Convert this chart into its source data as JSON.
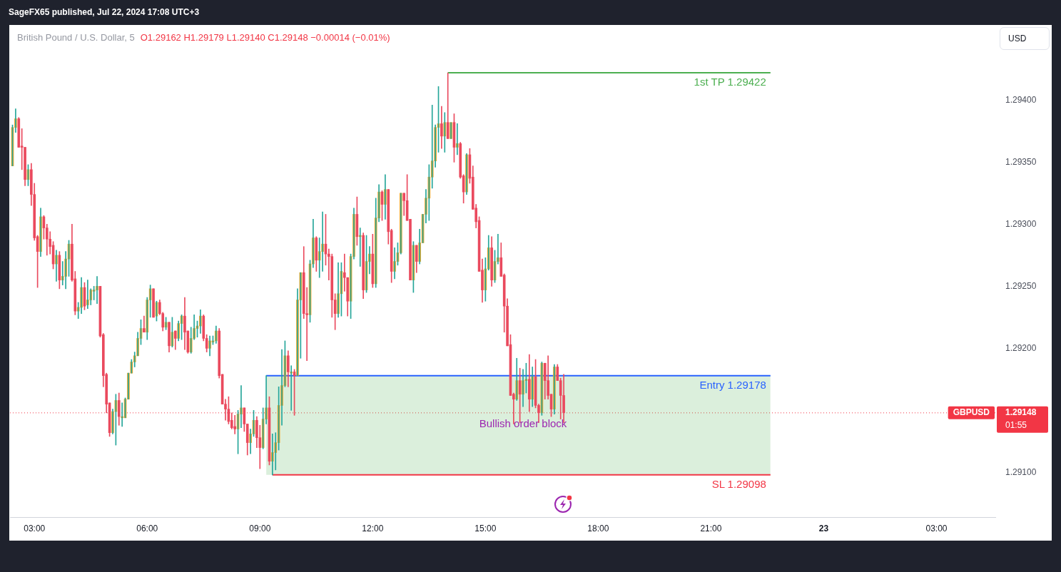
{
  "chart_data": {
    "type": "candlestick",
    "title": "British Pound / U.S. Dollar, 5",
    "subtitle": "O1.29162 H1.29179 L1.29140 C1.29148 −0.00014 (−0.01%)",
    "x": [
      "2024-07-22T02:25",
      "2024-07-22T02:30",
      "2024-07-22T02:35",
      "2024-07-22T02:40",
      "2024-07-22T02:45",
      "2024-07-22T02:50",
      "2024-07-22T02:55",
      "2024-07-22T03:00",
      "2024-07-22T03:05",
      "2024-07-22T03:10",
      "2024-07-22T03:15",
      "2024-07-22T03:20",
      "2024-07-22T03:25",
      "2024-07-22T03:30",
      "2024-07-22T03:35",
      "2024-07-22T03:40",
      "2024-07-22T03:45",
      "2024-07-22T03:50",
      "2024-07-22T03:55",
      "2024-07-22T04:00",
      "2024-07-22T04:05",
      "2024-07-22T04:10",
      "2024-07-22T04:15",
      "2024-07-22T04:20",
      "2024-07-22T04:25",
      "2024-07-22T04:30",
      "2024-07-22T04:35",
      "2024-07-22T04:40",
      "2024-07-22T04:45",
      "2024-07-22T04:50",
      "2024-07-22T04:55",
      "2024-07-22T05:00",
      "2024-07-22T05:05",
      "2024-07-22T05:10",
      "2024-07-22T05:15",
      "2024-07-22T05:20",
      "2024-07-22T05:25",
      "2024-07-22T05:30",
      "2024-07-22T05:35",
      "2024-07-22T05:40",
      "2024-07-22T05:45",
      "2024-07-22T05:50",
      "2024-07-22T05:55",
      "2024-07-22T06:00",
      "2024-07-22T06:05",
      "2024-07-22T06:10",
      "2024-07-22T06:15",
      "2024-07-22T06:20",
      "2024-07-22T06:25",
      "2024-07-22T06:30",
      "2024-07-22T06:35",
      "2024-07-22T06:40",
      "2024-07-22T06:45",
      "2024-07-22T06:50",
      "2024-07-22T06:55",
      "2024-07-22T07:00",
      "2024-07-22T07:05",
      "2024-07-22T07:10",
      "2024-07-22T07:15",
      "2024-07-22T07:20",
      "2024-07-22T07:25",
      "2024-07-22T07:30",
      "2024-07-22T07:35",
      "2024-07-22T07:40",
      "2024-07-22T07:45",
      "2024-07-22T07:50",
      "2024-07-22T07:55",
      "2024-07-22T08:00",
      "2024-07-22T08:05",
      "2024-07-22T08:10",
      "2024-07-22T08:15",
      "2024-07-22T08:20",
      "2024-07-22T08:25",
      "2024-07-22T08:30",
      "2024-07-22T08:35",
      "2024-07-22T08:40",
      "2024-07-22T08:45",
      "2024-07-22T08:50",
      "2024-07-22T08:55",
      "2024-07-22T09:00",
      "2024-07-22T09:05",
      "2024-07-22T09:10",
      "2024-07-22T09:15",
      "2024-07-22T09:20",
      "2024-07-22T09:25",
      "2024-07-22T09:30",
      "2024-07-22T09:35",
      "2024-07-22T09:40",
      "2024-07-22T09:45",
      "2024-07-22T09:50",
      "2024-07-22T09:55",
      "2024-07-22T10:00",
      "2024-07-22T10:05",
      "2024-07-22T10:10",
      "2024-07-22T10:15",
      "2024-07-22T10:20",
      "2024-07-22T10:25",
      "2024-07-22T10:30",
      "2024-07-22T10:35",
      "2024-07-22T10:40",
      "2024-07-22T10:45",
      "2024-07-22T10:50",
      "2024-07-22T10:55",
      "2024-07-22T11:00",
      "2024-07-22T11:05",
      "2024-07-22T11:10",
      "2024-07-22T11:15",
      "2024-07-22T11:20",
      "2024-07-22T11:25",
      "2024-07-22T11:30",
      "2024-07-22T11:35",
      "2024-07-22T11:40",
      "2024-07-22T11:45",
      "2024-07-22T11:50",
      "2024-07-22T11:55",
      "2024-07-22T12:00",
      "2024-07-22T12:05",
      "2024-07-22T12:10",
      "2024-07-22T12:15",
      "2024-07-22T12:20",
      "2024-07-22T12:25",
      "2024-07-22T12:30",
      "2024-07-22T12:35",
      "2024-07-22T12:40",
      "2024-07-22T12:45",
      "2024-07-22T12:50",
      "2024-07-22T12:55",
      "2024-07-22T13:00",
      "2024-07-22T13:05",
      "2024-07-22T13:10",
      "2024-07-22T13:15",
      "2024-07-22T13:20",
      "2024-07-22T13:25",
      "2024-07-22T13:30",
      "2024-07-22T13:35",
      "2024-07-22T13:40",
      "2024-07-22T13:45",
      "2024-07-22T13:50",
      "2024-07-22T13:55",
      "2024-07-22T14:00",
      "2024-07-22T14:05",
      "2024-07-22T14:10",
      "2024-07-22T14:15",
      "2024-07-22T14:20",
      "2024-07-22T14:25",
      "2024-07-22T14:30",
      "2024-07-22T14:35",
      "2024-07-22T14:40",
      "2024-07-22T14:45",
      "2024-07-22T14:50",
      "2024-07-22T14:55",
      "2024-07-22T15:00",
      "2024-07-22T15:05",
      "2024-07-22T15:10",
      "2024-07-22T15:15",
      "2024-07-22T15:20",
      "2024-07-22T15:25",
      "2024-07-22T15:30",
      "2024-07-22T15:35",
      "2024-07-22T15:40",
      "2024-07-22T15:45",
      "2024-07-22T15:50",
      "2024-07-22T15:55",
      "2024-07-22T16:00",
      "2024-07-22T16:05",
      "2024-07-22T16:10",
      "2024-07-22T16:15",
      "2024-07-22T16:20",
      "2024-07-22T16:25",
      "2024-07-22T16:30",
      "2024-07-22T16:35",
      "2024-07-22T16:40",
      "2024-07-22T16:45",
      "2024-07-22T16:50",
      "2024-07-22T16:55",
      "2024-07-22T17:00",
      "2024-07-22T17:05"
    ],
    "ohlc": [
      [
        1.29347,
        1.2938,
        1.29347,
        1.29378
      ],
      [
        1.29378,
        1.29393,
        1.29374,
        1.29385
      ],
      [
        1.29385,
        1.29386,
        1.29362,
        1.29362
      ],
      [
        1.29363,
        1.29377,
        1.29344,
        1.29362
      ],
      [
        1.29362,
        1.29362,
        1.29331,
        1.29336
      ],
      [
        1.29336,
        1.29348,
        1.29331,
        1.29344
      ],
      [
        1.29344,
        1.29349,
        1.29315,
        1.29324
      ],
      [
        1.29324,
        1.29333,
        1.29287,
        1.29289
      ],
      [
        1.2929,
        1.29291,
        1.29249,
        1.29278
      ],
      [
        1.29278,
        1.29313,
        1.29274,
        1.29306
      ],
      [
        1.29306,
        1.29307,
        1.29288,
        1.29297
      ],
      [
        1.29297,
        1.293,
        1.29275,
        1.29288
      ],
      [
        1.29288,
        1.29294,
        1.29276,
        1.29282
      ],
      [
        1.29283,
        1.29286,
        1.29264,
        1.29268
      ],
      [
        1.29268,
        1.29279,
        1.29254,
        1.29275
      ],
      [
        1.29275,
        1.29278,
        1.29248,
        1.29255
      ],
      [
        1.29255,
        1.2927,
        1.29251,
        1.29258
      ],
      [
        1.29258,
        1.29278,
        1.29248,
        1.29272
      ],
      [
        1.29272,
        1.29287,
        1.29258,
        1.29284
      ],
      [
        1.29284,
        1.293,
        1.29254,
        1.29255
      ],
      [
        1.29256,
        1.29262,
        1.29227,
        1.2923
      ],
      [
        1.2923,
        1.29237,
        1.29224,
        1.29233
      ],
      [
        1.29233,
        1.29257,
        1.29228,
        1.29249
      ],
      [
        1.29249,
        1.29253,
        1.29231,
        1.29234
      ],
      [
        1.29235,
        1.29255,
        1.29232,
        1.29239
      ],
      [
        1.29239,
        1.29248,
        1.29235,
        1.29247
      ],
      [
        1.29246,
        1.2925,
        1.29239,
        1.29247
      ],
      [
        1.29247,
        1.29258,
        1.29236,
        1.2925
      ],
      [
        1.2925,
        1.2925,
        1.29209,
        1.2921
      ],
      [
        1.29211,
        1.29212,
        1.29169,
        1.29178
      ],
      [
        1.29179,
        1.2918,
        1.29148,
        1.29155
      ],
      [
        1.29156,
        1.29156,
        1.29129,
        1.29132
      ],
      [
        1.29132,
        1.29151,
        1.29131,
        1.29149
      ],
      [
        1.29149,
        1.29163,
        1.29122,
        1.29158
      ],
      [
        1.29158,
        1.29164,
        1.29138,
        1.29145
      ],
      [
        1.29144,
        1.29156,
        1.29137,
        1.29145
      ],
      [
        1.29144,
        1.2916,
        1.29144,
        1.29159
      ],
      [
        1.29159,
        1.2918,
        1.29159,
        1.2918
      ],
      [
        1.2918,
        1.29191,
        1.2918,
        1.29189
      ],
      [
        1.29189,
        1.29197,
        1.29185,
        1.29194
      ],
      [
        1.29194,
        1.29213,
        1.29194,
        1.29208
      ],
      [
        1.29208,
        1.29223,
        1.29203,
        1.29216
      ],
      [
        1.29216,
        1.29226,
        1.29213,
        1.29213
      ],
      [
        1.29213,
        1.29241,
        1.29207,
        1.29239
      ],
      [
        1.29239,
        1.29251,
        1.29225,
        1.29248
      ],
      [
        1.29248,
        1.29248,
        1.29225,
        1.29225
      ],
      [
        1.29226,
        1.29238,
        1.29222,
        1.29237
      ],
      [
        1.29237,
        1.29239,
        1.29227,
        1.29228
      ],
      [
        1.29228,
        1.29229,
        1.29214,
        1.29217
      ],
      [
        1.29217,
        1.29225,
        1.29215,
        1.29221
      ],
      [
        1.29221,
        1.29221,
        1.29197,
        1.29202
      ],
      [
        1.29202,
        1.29225,
        1.29201,
        1.29213
      ],
      [
        1.29214,
        1.29214,
        1.29199,
        1.29208
      ],
      [
        1.29208,
        1.29222,
        1.29206,
        1.2922
      ],
      [
        1.2922,
        1.29227,
        1.29207,
        1.29226
      ],
      [
        1.29226,
        1.29241,
        1.29199,
        1.29213
      ],
      [
        1.29214,
        1.29214,
        1.29196,
        1.29197
      ],
      [
        1.29197,
        1.29217,
        1.29196,
        1.29208
      ],
      [
        1.29208,
        1.29227,
        1.29207,
        1.29216
      ],
      [
        1.29216,
        1.29222,
        1.29209,
        1.29218
      ],
      [
        1.29218,
        1.29231,
        1.29212,
        1.29226
      ],
      [
        1.29226,
        1.29227,
        1.29206,
        1.29208
      ],
      [
        1.29208,
        1.29211,
        1.29197,
        1.292
      ],
      [
        1.292,
        1.2921,
        1.29194,
        1.29206
      ],
      [
        1.29205,
        1.2921,
        1.29203,
        1.29206
      ],
      [
        1.29206,
        1.29218,
        1.29204,
        1.29214
      ],
      [
        1.29214,
        1.29216,
        1.29176,
        1.29178
      ],
      [
        1.29179,
        1.29179,
        1.29155,
        1.29155
      ],
      [
        1.29155,
        1.29159,
        1.29142,
        1.29151
      ],
      [
        1.29151,
        1.29161,
        1.29139,
        1.29141
      ],
      [
        1.29142,
        1.29148,
        1.29135,
        1.29136
      ],
      [
        1.29137,
        1.29146,
        1.29131,
        1.29135
      ],
      [
        1.29135,
        1.2915,
        1.29115,
        1.29147
      ],
      [
        1.29147,
        1.2917,
        1.29136,
        1.29152
      ],
      [
        1.29152,
        1.29152,
        1.29133,
        1.29139
      ],
      [
        1.29139,
        1.29139,
        1.29114,
        1.29124
      ],
      [
        1.29124,
        1.29135,
        1.29115,
        1.29131
      ],
      [
        1.29131,
        1.2915,
        1.29129,
        1.29142
      ],
      [
        1.29142,
        1.29145,
        1.2912,
        1.29128
      ],
      [
        1.29128,
        1.29138,
        1.29103,
        1.2912
      ],
      [
        1.2912,
        1.29152,
        1.29119,
        1.29143
      ],
      [
        1.29143,
        1.29178,
        1.29139,
        1.29152
      ],
      [
        1.29152,
        1.29161,
        1.29106,
        1.29109
      ],
      [
        1.29109,
        1.29131,
        1.29098,
        1.29116
      ],
      [
        1.29116,
        1.29132,
        1.29102,
        1.29124
      ],
      [
        1.29124,
        1.29169,
        1.29118,
        1.29154
      ],
      [
        1.29154,
        1.29199,
        1.29138,
        1.2917
      ],
      [
        1.2917,
        1.29206,
        1.29169,
        1.29194
      ],
      [
        1.29194,
        1.29198,
        1.29169,
        1.29181
      ],
      [
        1.2918,
        1.29186,
        1.2915,
        1.29181
      ],
      [
        1.29181,
        1.29183,
        1.29146,
        1.29178
      ],
      [
        1.29178,
        1.29248,
        1.29178,
        1.29239
      ],
      [
        1.29239,
        1.29261,
        1.29192,
        1.29261
      ],
      [
        1.29261,
        1.29282,
        1.29224,
        1.29228
      ],
      [
        1.29228,
        1.29249,
        1.2919,
        1.29227
      ],
      [
        1.29227,
        1.29271,
        1.29221,
        1.29268
      ],
      [
        1.29268,
        1.29304,
        1.29265,
        1.29289
      ],
      [
        1.29289,
        1.2929,
        1.29262,
        1.29271
      ],
      [
        1.29271,
        1.29289,
        1.29257,
        1.29278
      ],
      [
        1.29278,
        1.2931,
        1.29262,
        1.29284
      ],
      [
        1.29284,
        1.29308,
        1.29267,
        1.29276
      ],
      [
        1.29276,
        1.2928,
        1.29255,
        1.29274
      ],
      [
        1.29274,
        1.29276,
        1.29225,
        1.29239
      ],
      [
        1.29239,
        1.29244,
        1.29215,
        1.29228
      ],
      [
        1.29228,
        1.29269,
        1.29225,
        1.29244
      ],
      [
        1.29244,
        1.29269,
        1.29226,
        1.29262
      ],
      [
        1.29261,
        1.29276,
        1.29246,
        1.29257
      ],
      [
        1.29257,
        1.29257,
        1.29226,
        1.29238
      ],
      [
        1.29238,
        1.29276,
        1.29224,
        1.29274
      ],
      [
        1.29274,
        1.29313,
        1.29272,
        1.29308
      ],
      [
        1.29308,
        1.29322,
        1.29283,
        1.2929
      ],
      [
        1.2929,
        1.29297,
        1.29266,
        1.29291
      ],
      [
        1.29291,
        1.29293,
        1.2924,
        1.29247
      ],
      [
        1.29247,
        1.29291,
        1.29245,
        1.2927
      ],
      [
        1.2927,
        1.29282,
        1.2926,
        1.29276
      ],
      [
        1.29276,
        1.29292,
        1.29249,
        1.29252
      ],
      [
        1.29252,
        1.29321,
        1.29249,
        1.29305
      ],
      [
        1.29305,
        1.29332,
        1.29302,
        1.29326
      ],
      [
        1.29326,
        1.29327,
        1.29303,
        1.29316
      ],
      [
        1.29316,
        1.2934,
        1.29304,
        1.29328
      ],
      [
        1.29328,
        1.29328,
        1.29284,
        1.29294
      ],
      [
        1.29295,
        1.29296,
        1.29253,
        1.29262
      ],
      [
        1.29262,
        1.29281,
        1.29256,
        1.2927
      ],
      [
        1.2927,
        1.29285,
        1.29267,
        1.29277
      ],
      [
        1.29277,
        1.29325,
        1.29276,
        1.29325
      ],
      [
        1.29325,
        1.29325,
        1.29307,
        1.29319
      ],
      [
        1.29319,
        1.2934,
        1.29303,
        1.29303
      ],
      [
        1.29304,
        1.29304,
        1.29255,
        1.29255
      ],
      [
        1.29255,
        1.29286,
        1.29245,
        1.29283
      ],
      [
        1.29283,
        1.29283,
        1.29261,
        1.2927
      ],
      [
        1.2927,
        1.29296,
        1.29268,
        1.29285
      ],
      [
        1.29285,
        1.29308,
        1.29285,
        1.29308
      ],
      [
        1.29308,
        1.29328,
        1.29301,
        1.29321
      ],
      [
        1.29321,
        1.29348,
        1.29303,
        1.29338
      ],
      [
        1.29338,
        1.29396,
        1.29329,
        1.29351
      ],
      [
        1.29351,
        1.2938,
        1.29346,
        1.29378
      ],
      [
        1.29378,
        1.29411,
        1.29358,
        1.29381
      ],
      [
        1.29381,
        1.29395,
        1.29361,
        1.29371
      ],
      [
        1.29371,
        1.2939,
        1.29358,
        1.29382
      ],
      [
        1.29382,
        1.29422,
        1.29369,
        1.29369
      ],
      [
        1.29369,
        1.29382,
        1.29369,
        1.29382
      ],
      [
        1.29382,
        1.29389,
        1.2935,
        1.29362
      ],
      [
        1.29362,
        1.29381,
        1.29356,
        1.29365
      ],
      [
        1.29365,
        1.29366,
        1.29337,
        1.29338
      ],
      [
        1.29339,
        1.2934,
        1.29317,
        1.29326
      ],
      [
        1.29326,
        1.29357,
        1.29324,
        1.29356
      ],
      [
        1.29356,
        1.29361,
        1.29333,
        1.29337
      ],
      [
        1.29338,
        1.29347,
        1.29312,
        1.29312
      ],
      [
        1.29313,
        1.29316,
        1.29297,
        1.29302
      ],
      [
        1.29303,
        1.29306,
        1.29262,
        1.29262
      ],
      [
        1.29263,
        1.29272,
        1.29237,
        1.29247
      ],
      [
        1.29247,
        1.29273,
        1.29238,
        1.29264
      ],
      [
        1.29264,
        1.29291,
        1.29263,
        1.29281
      ],
      [
        1.29281,
        1.2929,
        1.2925,
        1.29255
      ],
      [
        1.29255,
        1.29279,
        1.29253,
        1.2927
      ],
      [
        1.2927,
        1.29292,
        1.29268,
        1.29273
      ],
      [
        1.29273,
        1.29285,
        1.29258,
        1.29258
      ],
      [
        1.29259,
        1.2926,
        1.29213,
        1.29234
      ],
      [
        1.29234,
        1.2924,
        1.29202,
        1.29202
      ],
      [
        1.29203,
        1.29211,
        1.29162,
        1.29162
      ],
      [
        1.29163,
        1.29164,
        1.29139,
        1.29159
      ],
      [
        1.29159,
        1.29192,
        1.29158,
        1.29174
      ],
      [
        1.29174,
        1.29184,
        1.2914,
        1.29163
      ],
      [
        1.29163,
        1.29183,
        1.29153,
        1.29174
      ],
      [
        1.29174,
        1.29188,
        1.29164,
        1.29175
      ],
      [
        1.29175,
        1.29195,
        1.29149,
        1.29159
      ],
      [
        1.29159,
        1.29185,
        1.29153,
        1.29177
      ],
      [
        1.29177,
        1.29191,
        1.29152,
        1.29154
      ],
      [
        1.29154,
        1.29155,
        1.2914,
        1.29148
      ],
      [
        1.29148,
        1.29189,
        1.29146,
        1.29188
      ],
      [
        1.29188,
        1.29188,
        1.29159,
        1.29174
      ],
      [
        1.29174,
        1.29194,
        1.29159,
        1.29162
      ],
      [
        1.29163,
        1.29163,
        1.29145,
        1.29151
      ],
      [
        1.29151,
        1.29187,
        1.29147,
        1.29185
      ],
      [
        1.29185,
        1.29187,
        1.29174,
        1.29174
      ],
      [
        1.29174,
        1.29176,
        1.29143,
        1.29162
      ],
      [
        1.29162,
        1.29179,
        1.2914,
        1.29148
      ]
    ],
    "series": [
      {
        "type": "line",
        "name": "1st TP 1.29422",
        "color": "#4caf50",
        "x": [
          "2024-07-22T14:00",
          "2024-07-22T22:35"
        ],
        "values": [
          1.29422,
          1.29422
        ]
      },
      {
        "type": "line",
        "name": "Entry 1.29178",
        "color": "#2962ff",
        "x": [
          "2024-07-22T09:10",
          "2024-07-22T22:35"
        ],
        "values": [
          1.29178,
          1.29178
        ],
        "lower": [
          1.29098,
          1.29098
        ],
        "upper": [
          1.29178,
          1.29178
        ]
      },
      {
        "type": "line",
        "name": "SL 1.29098",
        "color": "#f23645",
        "x": [
          "2024-07-22T09:20",
          "2024-07-22T22:35"
        ],
        "values": [
          1.29098,
          1.29098
        ]
      }
    ],
    "ref_lines": [
      {
        "axis": "y",
        "value": 1.29148,
        "label": "GBPUSD",
        "color": "#f23645",
        "line_style": "dotted"
      }
    ],
    "annotations": [
      "SageFX65 published, Jul 22, 2024 17:08 UTC+3",
      "USD",
      "1.29148",
      "01:55",
      {
        "text": "Bullish order block",
        "x": "2024-07-22T16:00",
        "y": 1.29139
      }
    ],
    "xlim": [
      "2024-07-22T02:21",
      "2024-07-23T04:34"
    ],
    "xticks": [
      {
        "value": "2024-07-22T03:00",
        "label": "03:00"
      },
      {
        "value": "2024-07-22T06:00",
        "label": "06:00"
      },
      {
        "value": "2024-07-22T09:00",
        "label": "09:00"
      },
      {
        "value": "2024-07-22T12:00",
        "label": "12:00"
      },
      {
        "value": "2024-07-22T15:00",
        "label": "15:00"
      },
      {
        "value": "2024-07-22T18:00",
        "label": "18:00"
      },
      {
        "value": "2024-07-22T21:00",
        "label": "21:00"
      },
      {
        "value": "2024-07-23T00:00",
        "label": "23"
      },
      {
        "value": "2024-07-23T03:00",
        "label": "03:00"
      }
    ],
    "ylim": [
      1.29064,
      1.2946
    ],
    "yticks": [
      {
        "value": 1.291,
        "label": "1.29100"
      },
      {
        "value": 1.292,
        "label": "1.29200"
      },
      {
        "value": 1.2925,
        "label": "1.29250"
      },
      {
        "value": 1.293,
        "label": "1.29300"
      },
      {
        "value": 1.2935,
        "label": "1.29350"
      },
      {
        "value": 1.294,
        "label": "1.29400"
      }
    ]
  }
}
